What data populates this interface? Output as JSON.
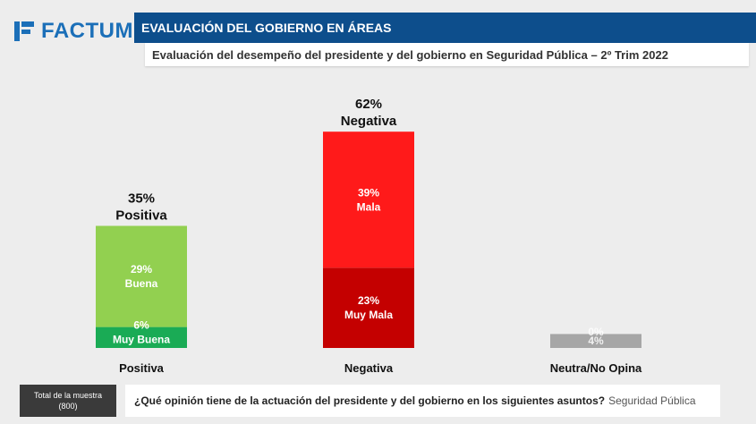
{
  "brand": {
    "logo_text": "FACTUM",
    "color": "#1b6fb8"
  },
  "header": {
    "title": "EVALUACIÓN DEL GOBIERNO EN ÁREAS",
    "subtitle": "Evaluación del desempeño del presidente y del gobierno en Seguridad Pública – 2º Trim 2022"
  },
  "chart_data": {
    "type": "bar",
    "stacked": true,
    "ylim": [
      0,
      70
    ],
    "categories": [
      "Positiva",
      "Negativa",
      "Neutra/No Opina"
    ],
    "totals": [
      {
        "value": "35%",
        "label": "Positiva"
      },
      {
        "value": "62%",
        "label": "Negativa"
      },
      {
        "value": "",
        "label": ""
      }
    ],
    "series": [
      {
        "values": [
          6,
          23,
          0
        ],
        "labels": [
          "6%",
          "23%",
          "0%"
        ],
        "names": [
          "Muy Buena",
          "Muy Mala",
          ""
        ],
        "colors": [
          "#1aab55",
          "#c40000",
          "#a6a6a6"
        ]
      },
      {
        "values": [
          29,
          39,
          4
        ],
        "labels": [
          "29%",
          "39%",
          "4%"
        ],
        "names": [
          "Buena",
          "Mala",
          ""
        ],
        "colors": [
          "#92d050",
          "#ff1a1a",
          "#a6a6a6"
        ]
      }
    ]
  },
  "footer": {
    "sample_label": "Total de la muestra",
    "sample_value": "(800)",
    "question": "¿Qué opinión tiene de la actuación del presidente y del gobierno en los siguientes asuntos?",
    "topic": "Seguridad Pública"
  }
}
